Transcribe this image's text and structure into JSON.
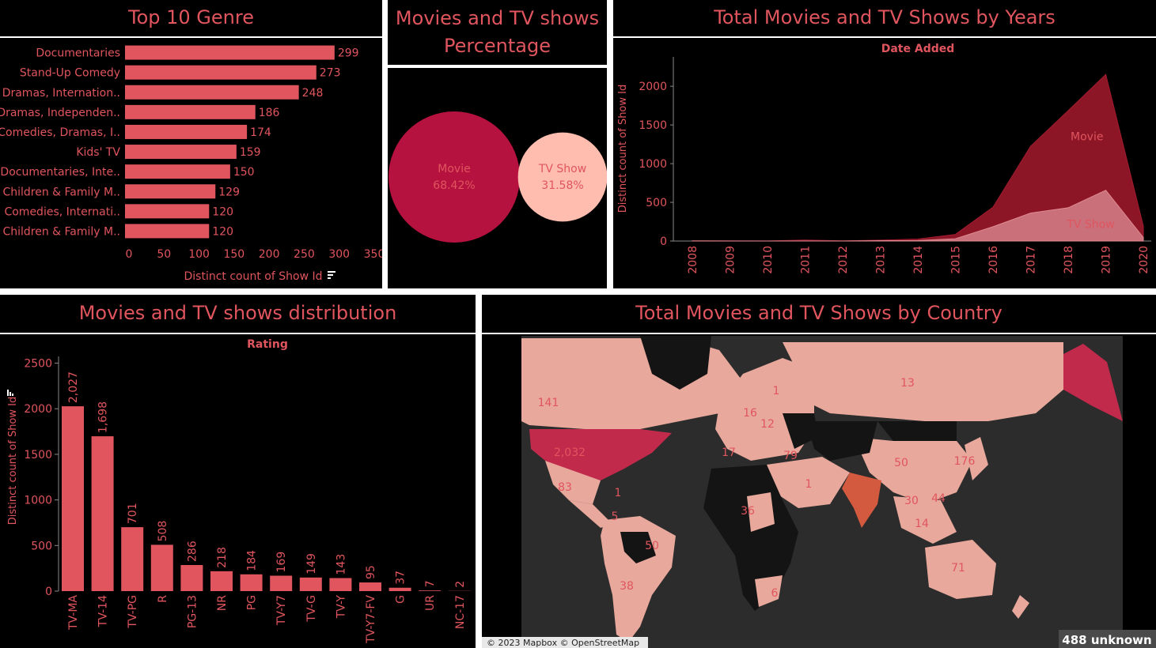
{
  "panels": {
    "genre": {
      "title": "Top 10 Genre"
    },
    "percentage": {
      "title_line1": "Movies and TV shows",
      "title_line2": "Percentage"
    },
    "years": {
      "title": "Total Movies and TV Shows by Years"
    },
    "distribution": {
      "title": "Movies and TV shows distribution"
    },
    "country": {
      "title": "Total Movies and TV Shows by Country"
    }
  },
  "colors": {
    "bar": "#e0555e",
    "movie": "#b5123f",
    "tvshow": "#ffbdb0",
    "area_movie": "#8c1526",
    "area_tv": "#c9707a",
    "map_dark": "#2c2c2c",
    "map_light": "#e8a89c"
  },
  "chart_data": [
    {
      "id": "top-genre",
      "type": "bar",
      "orientation": "horizontal",
      "categories": [
        "Documentaries",
        "Stand-Up Comedy",
        "Dramas, Internation..",
        "Dramas, Independen..",
        "Comedies, Dramas, I..",
        "Kids' TV",
        "Documentaries, Inte..",
        "Children & Family M..",
        "Comedies, Internati..",
        "Children & Family M.."
      ],
      "values": [
        299,
        273,
        248,
        186,
        174,
        159,
        150,
        129,
        120,
        120
      ],
      "value_labels": [
        "299",
        "273",
        "248",
        "186",
        "174",
        "159",
        "150",
        "129",
        "120",
        "120"
      ],
      "xlabel": "Distinct count of Show Id",
      "xlim": [
        0,
        350
      ],
      "xticks": [
        "0",
        "50",
        "100",
        "150",
        "200",
        "250",
        "300",
        "350"
      ]
    },
    {
      "id": "type-percentage",
      "type": "bubble",
      "items": [
        {
          "name": "Movie",
          "label": "68.42%",
          "value": 68.42
        },
        {
          "name": "TV Show",
          "label": "31.58%",
          "value": 31.58
        }
      ]
    },
    {
      "id": "by-years",
      "type": "area",
      "title": "Date Added",
      "ylabel": "Distinct count of Show Id",
      "x": [
        "2008",
        "2009",
        "2010",
        "2011",
        "2012",
        "2013",
        "2014",
        "2015",
        "2016",
        "2017",
        "2018",
        "2019",
        "2020"
      ],
      "ylim": [
        0,
        2400
      ],
      "yticks": [
        "0",
        "500",
        "1000",
        "1500",
        "2000"
      ],
      "series": [
        {
          "name": "Movie",
          "values": [
            1,
            2,
            1,
            13,
            3,
            6,
            19,
            56,
            253,
            864,
            1255,
            1497,
            147
          ]
        },
        {
          "name": "TV Show",
          "values": [
            1,
            0,
            0,
            0,
            0,
            5,
            6,
            30,
            185,
            361,
            430,
            656,
            46
          ]
        }
      ]
    },
    {
      "id": "rating-distribution",
      "type": "bar",
      "title": "Rating",
      "ylabel": "Distinct count of Show Id",
      "ylim": [
        0,
        2600
      ],
      "yticks": [
        "0",
        "500",
        "1000",
        "1500",
        "2000",
        "2500"
      ],
      "categories": [
        "TV-MA",
        "TV-14",
        "TV-PG",
        "R",
        "PG-13",
        "NR",
        "PG",
        "TV-Y7",
        "TV-G",
        "TV-Y",
        "TV-Y7-FV",
        "G",
        "UR",
        "NC-17"
      ],
      "values": [
        2027,
        1698,
        701,
        508,
        286,
        218,
        184,
        169,
        149,
        143,
        95,
        37,
        7,
        2
      ],
      "value_labels": [
        "2,027",
        "1,698",
        "701",
        "508",
        "286",
        "218",
        "184",
        "169",
        "149",
        "143",
        "95",
        "37",
        "7",
        "2"
      ]
    }
  ],
  "map": {
    "labels": [
      "141",
      "2,032",
      "13",
      "50",
      "176",
      "71",
      "50",
      "38",
      "83",
      "44",
      "30",
      "14",
      "16",
      "12",
      "79",
      "1",
      "36",
      "6",
      "17",
      "1",
      "1",
      "5"
    ],
    "attribution": "© 2023 Mapbox © OpenStreetMap",
    "unknown": "488 unknown"
  }
}
